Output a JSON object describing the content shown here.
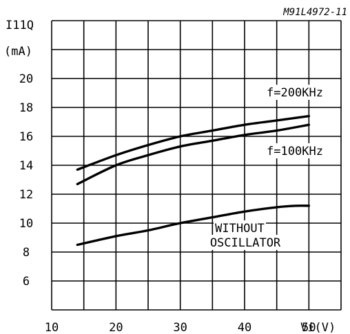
{
  "chart_data": {
    "type": "line",
    "figure_code": "M91L4972-11",
    "ylabel": "I11Q",
    "ylabel_unit": "(mA)",
    "xlabel": "Vi(V)",
    "xlim": [
      10,
      55
    ],
    "ylim": [
      4,
      24
    ],
    "x_ticks": [
      "10",
      "20",
      "30",
      "40",
      "50"
    ],
    "y_ticks": [
      "6",
      "8",
      "10",
      "12",
      "14",
      "16",
      "18",
      "20"
    ],
    "grid": true,
    "series": [
      {
        "name": "f=200KHz",
        "x": [
          14,
          20,
          25,
          30,
          35,
          40,
          45,
          50
        ],
        "y": [
          13.7,
          14.7,
          15.4,
          16.0,
          16.4,
          16.8,
          17.1,
          17.4
        ]
      },
      {
        "name": "f=100KHz",
        "x": [
          14,
          20,
          25,
          30,
          35,
          40,
          45,
          50
        ],
        "y": [
          12.7,
          14.0,
          14.7,
          15.3,
          15.7,
          16.1,
          16.4,
          16.8
        ]
      },
      {
        "name": "WITHOUT OSCILLATOR",
        "name_lines": [
          "WITHOUT",
          "OSCILLATOR"
        ],
        "x": [
          14,
          20,
          25,
          30,
          35,
          40,
          45,
          48,
          50
        ],
        "y": [
          8.5,
          9.1,
          9.5,
          10.0,
          10.4,
          10.8,
          11.1,
          11.2,
          11.2
        ]
      }
    ]
  }
}
